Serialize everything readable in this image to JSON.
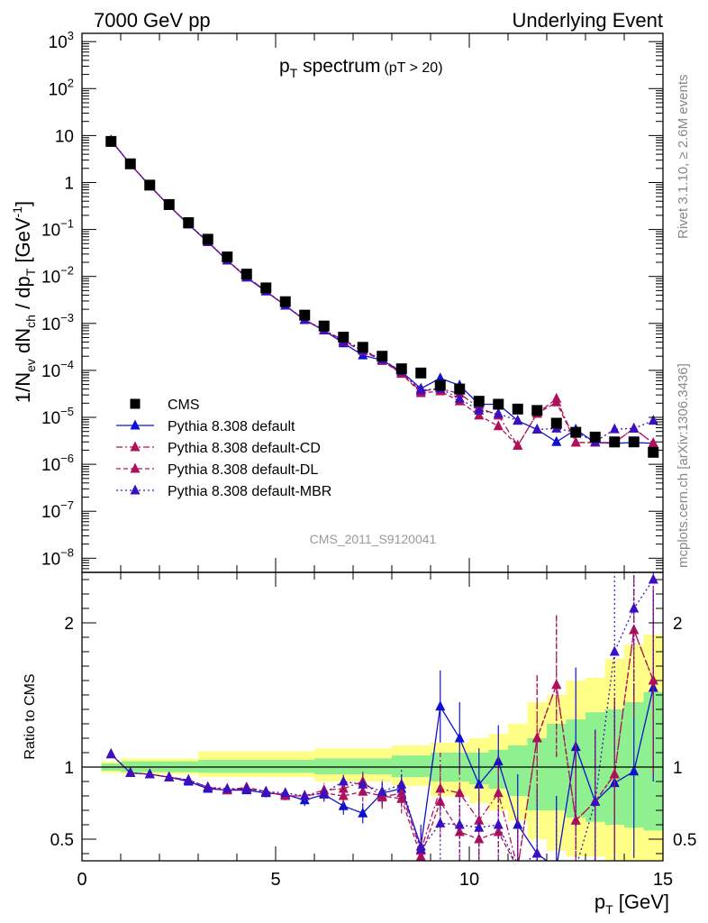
{
  "header": {
    "left": "7000 GeV pp",
    "right": "Underlying Event"
  },
  "side": {
    "top": "Rivet 3.1.10, ≥ 2.6M events",
    "bottom": "mcplots.cern.ch [arXiv:1306.3436]"
  },
  "chart_data": {
    "type": "scatter",
    "title": "pT spectrum",
    "title_main": "p",
    "title_sub": "T",
    "title_rest": " spectrum",
    "title_cut": "(pT > 20)",
    "watermark": "CMS_2011_S9120041",
    "ylabel_main": "1/N_ev dN_ch / dp_T [GeV^-1]",
    "ylabel_ratio": "Ratio to CMS",
    "xlabel": "p_T [GeV]",
    "xlim": [
      0,
      15
    ],
    "ylim_main": [
      5e-09,
      1500
    ],
    "ylim_ratio": [
      0.35,
      2.35
    ],
    "y_scale_main": "log",
    "legend_position": "lower-left",
    "x_ticks": [
      {
        "v": 0,
        "label": "0"
      },
      {
        "v": 5,
        "label": "5"
      },
      {
        "v": 10,
        "label": "10"
      },
      {
        "v": 15,
        "label": "15"
      }
    ],
    "y_ticks_main": [
      {
        "v": 1e-08,
        "b": "10",
        "e": "−8"
      },
      {
        "v": 1e-07,
        "b": "10",
        "e": "−7"
      },
      {
        "v": 1e-06,
        "b": "10",
        "e": "−6"
      },
      {
        "v": 1e-05,
        "b": "10",
        "e": "−5"
      },
      {
        "v": 0.0001,
        "b": "10",
        "e": "−4"
      },
      {
        "v": 0.001,
        "b": "10",
        "e": "−3"
      },
      {
        "v": 0.01,
        "b": "10",
        "e": "−2"
      },
      {
        "v": 0.1,
        "b": "10",
        "e": "−1"
      },
      {
        "v": 1,
        "b": "1",
        "e": ""
      },
      {
        "v": 10,
        "b": "10",
        "e": ""
      },
      {
        "v": 100,
        "b": "10",
        "e": "2"
      },
      {
        "v": 1000,
        "b": "10",
        "e": "3"
      }
    ],
    "y_ticks_ratio": [
      {
        "v": 0.5,
        "label": "0.5"
      },
      {
        "v": 1,
        "label": "1"
      },
      {
        "v": 2,
        "label": "2"
      }
    ],
    "x": [
      0.75,
      1.25,
      1.75,
      2.25,
      2.75,
      3.25,
      3.75,
      4.25,
      4.75,
      5.25,
      5.75,
      6.25,
      6.75,
      7.25,
      7.75,
      8.25,
      8.75,
      9.25,
      9.75,
      10.25,
      10.75,
      11.25,
      11.75,
      12.25,
      12.75,
      13.25,
      13.75,
      14.25,
      14.75
    ],
    "ratio_bands": [
      {
        "x0": 0.5,
        "x1": 1.0,
        "y_lo": 0.96,
        "y_hi": 1.04,
        "g_lo": 0.975,
        "g_hi": 1.025
      },
      {
        "x0": 1.0,
        "x1": 3.0,
        "y_lo": 0.95,
        "y_hi": 1.06,
        "g_lo": 0.965,
        "g_hi": 1.04
      },
      {
        "x0": 3.0,
        "x1": 6.0,
        "y_lo": 0.93,
        "y_hi": 1.11,
        "g_lo": 0.96,
        "g_hi": 1.05
      },
      {
        "x0": 6.0,
        "x1": 8.0,
        "y_lo": 0.9,
        "y_hi": 1.13,
        "g_lo": 0.95,
        "g_hi": 1.06
      },
      {
        "x0": 8.0,
        "x1": 9.0,
        "y_lo": 0.87,
        "y_hi": 1.15,
        "g_lo": 0.93,
        "g_hi": 1.08
      },
      {
        "x0": 9.0,
        "x1": 10.0,
        "y_lo": 0.8,
        "y_hi": 1.17,
        "g_lo": 0.9,
        "g_hi": 1.1
      },
      {
        "x0": 10.0,
        "x1": 10.5,
        "y_lo": 0.75,
        "y_hi": 1.2,
        "g_lo": 0.88,
        "g_hi": 1.1
      },
      {
        "x0": 10.5,
        "x1": 11.0,
        "y_lo": 0.7,
        "y_hi": 1.23,
        "g_lo": 0.85,
        "g_hi": 1.12
      },
      {
        "x0": 11.0,
        "x1": 11.5,
        "y_lo": 0.63,
        "y_hi": 1.3,
        "g_lo": 0.8,
        "g_hi": 1.15
      },
      {
        "x0": 11.5,
        "x1": 12.0,
        "y_lo": 0.5,
        "y_hi": 1.45,
        "g_lo": 0.7,
        "g_hi": 1.2
      },
      {
        "x0": 12.0,
        "x1": 12.5,
        "y_lo": 0.42,
        "y_hi": 1.5,
        "g_lo": 0.7,
        "g_hi": 1.3
      },
      {
        "x0": 12.5,
        "x1": 13.0,
        "y_lo": 0.38,
        "y_hi": 1.6,
        "g_lo": 0.65,
        "g_hi": 1.33
      },
      {
        "x0": 13.0,
        "x1": 13.5,
        "y_lo": 0.38,
        "y_hi": 1.62,
        "g_lo": 0.62,
        "g_hi": 1.38
      },
      {
        "x0": 13.5,
        "x1": 14.0,
        "y_lo": 0.35,
        "y_hi": 1.75,
        "g_lo": 0.6,
        "g_hi": 1.4
      },
      {
        "x0": 14.0,
        "x1": 14.5,
        "y_lo": 0.35,
        "y_hi": 1.85,
        "g_lo": 0.58,
        "g_hi": 1.45
      },
      {
        "x0": 14.5,
        "x1": 15.0,
        "y_lo": 0.35,
        "y_hi": 1.92,
        "g_lo": 0.56,
        "g_hi": 1.52
      }
    ],
    "series": [
      {
        "name": "CMS",
        "marker": "square",
        "color": "#000000",
        "dash": "",
        "line": false,
        "y": [
          7.5,
          2.5,
          0.88,
          0.34,
          0.14,
          0.062,
          0.026,
          0.0112,
          0.0057,
          0.0029,
          0.0015,
          0.00088,
          0.00051,
          0.00031,
          0.0002,
          0.000108,
          8.8e-05,
          4.8e-05,
          4e-05,
          2.2e-05,
          1.9e-05,
          1.5e-05,
          1.4e-05,
          7.5e-06,
          4.8e-06,
          3.8e-06,
          3e-06,
          3e-06,
          1.8e-06
        ]
      },
      {
        "name": "Pythia 8.308 default",
        "marker": "triangle",
        "color": "#1010d0",
        "dash": "",
        "line": true,
        "y": [
          7.9,
          2.45,
          0.85,
          0.32,
          0.128,
          0.054,
          0.022,
          0.0095,
          0.0048,
          0.0024,
          0.00118,
          0.00071,
          0.00038,
          0.00021,
          0.000165,
          9.4e-05,
          4.1e-05,
          6.8e-05,
          4.8e-05,
          1.9e-05,
          1.9e-05,
          8.5e-06,
          5.5e-06,
          3e-06,
          5.5e-06,
          2.9e-06,
          2.8e-06,
          2.9e-06,
          2.8e-06
        ],
        "ratio": [
          1.09,
          0.96,
          0.95,
          0.93,
          0.9,
          0.85,
          0.84,
          0.84,
          0.82,
          0.81,
          0.77,
          0.81,
          0.73,
          0.68,
          0.82,
          0.85,
          0.45,
          1.42,
          1.2,
          0.88,
          1.04,
          0.6,
          0.4,
          0.3,
          1.14,
          0.76,
          0.89,
          0.97,
          1.55
        ],
        "ratio_err": [
          0.01,
          0.01,
          0.01,
          0.01,
          0.01,
          0.02,
          0.02,
          0.02,
          0.03,
          0.03,
          0.04,
          0.05,
          0.06,
          0.07,
          0.08,
          0.1,
          0.15,
          0.25,
          0.25,
          0.25,
          0.25,
          0.35,
          0.45,
          0.5,
          0.55,
          0.5,
          0.55,
          0.6,
          0.65
        ]
      },
      {
        "name": "Pythia 8.308 default-CD",
        "marker": "triangle",
        "color": "#b0105a",
        "dash": "7,3,2,3",
        "line": true,
        "y": [
          7.9,
          2.45,
          0.86,
          0.32,
          0.13,
          0.055,
          0.022,
          0.0098,
          0.0049,
          0.0024,
          0.0012,
          0.00072,
          0.00044,
          0.00028,
          0.00016,
          8.8e-05,
          3.6e-05,
          4.1e-05,
          3.2e-05,
          1.6e-05,
          1.1e-05,
          2.5e-06,
          1.2e-05,
          2.5e-05,
          2.9e-06,
          2.9e-06,
          2.9e-06,
          5.8e-06,
          2.8e-06
        ],
        "ratio": [
          1.09,
          0.96,
          0.95,
          0.93,
          0.91,
          0.86,
          0.84,
          0.85,
          0.83,
          0.8,
          0.8,
          0.84,
          0.85,
          0.9,
          0.79,
          0.82,
          0.42,
          0.85,
          0.82,
          0.63,
          0.82,
          0.3,
          1.2,
          1.57,
          0.63,
          0.76,
          0.95,
          1.95,
          1.6
        ],
        "ratio_err": [
          0.01,
          0.01,
          0.01,
          0.01,
          0.01,
          0.02,
          0.02,
          0.02,
          0.03,
          0.03,
          0.04,
          0.05,
          0.06,
          0.07,
          0.08,
          0.1,
          0.15,
          0.25,
          0.25,
          0.25,
          0.25,
          0.35,
          0.45,
          0.5,
          0.55,
          0.5,
          0.55,
          0.6,
          0.65
        ]
      },
      {
        "name": "Pythia 8.308 default-DL",
        "marker": "triangle",
        "color": "#b0105a",
        "dash": "5,3",
        "line": true,
        "y": [
          7.9,
          2.45,
          0.86,
          0.32,
          0.13,
          0.055,
          0.022,
          0.0097,
          0.0049,
          0.0024,
          0.0012,
          0.00071,
          0.00041,
          0.00026,
          0.00016,
          8.5e-05,
          3.3e-05,
          3.6e-05,
          2.2e-05,
          1.1e-05,
          6.5e-06,
          2.5e-06,
          1.2e-05,
          2.1e-05,
          2.9e-06,
          2.9e-06,
          2.9e-06,
          5.8e-06,
          2.8e-06
        ],
        "ratio": [
          1.09,
          0.96,
          0.95,
          0.93,
          0.91,
          0.86,
          0.84,
          0.86,
          0.83,
          0.8,
          0.8,
          0.82,
          0.8,
          0.83,
          0.8,
          0.78,
          0.38,
          0.76,
          0.55,
          0.5,
          0.55,
          0.3,
          1.2,
          1.57,
          0.63,
          0.76,
          0.95,
          1.95,
          1.6
        ],
        "ratio_err": [
          0.01,
          0.01,
          0.01,
          0.01,
          0.01,
          0.02,
          0.02,
          0.02,
          0.03,
          0.03,
          0.04,
          0.05,
          0.06,
          0.07,
          0.08,
          0.1,
          0.15,
          0.25,
          0.25,
          0.25,
          0.25,
          0.35,
          0.45,
          0.5,
          0.55,
          0.5,
          0.55,
          0.6,
          0.65
        ]
      },
      {
        "name": "Pythia 8.308 default-MBR",
        "marker": "triangle",
        "color": "#3a10c0",
        "dash": "2,3",
        "line": true,
        "y": [
          7.9,
          2.45,
          0.86,
          0.32,
          0.13,
          0.055,
          0.022,
          0.0097,
          0.0049,
          0.0024,
          0.0012,
          0.00072,
          0.00042,
          0.00027,
          0.00017,
          9.5e-05,
          3.8e-05,
          4.1e-05,
          2.5e-05,
          1.4e-05,
          1.2e-05,
          8.5e-06,
          5.5e-06,
          5.8e-06,
          4.8e-06,
          3e-06,
          5.6e-06,
          5.8e-06,
          8.5e-06
        ],
        "ratio": [
          1.09,
          0.96,
          0.95,
          0.93,
          0.91,
          0.86,
          0.85,
          0.85,
          0.83,
          0.82,
          0.8,
          0.82,
          0.9,
          0.88,
          0.83,
          0.88,
          0.43,
          0.61,
          0.6,
          0.58,
          0.6,
          0.3,
          0.4,
          0.3,
          0.3,
          0.76,
          1.8,
          2.1,
          2.3
        ],
        "ratio_err": [
          0.01,
          0.01,
          0.01,
          0.01,
          0.01,
          0.02,
          0.02,
          0.02,
          0.03,
          0.03,
          0.04,
          0.05,
          0.06,
          0.07,
          0.08,
          0.1,
          0.15,
          0.25,
          0.25,
          0.25,
          0.25,
          0.35,
          0.45,
          0.5,
          0.55,
          0.5,
          0.55,
          0.6,
          0.65
        ]
      }
    ]
  }
}
